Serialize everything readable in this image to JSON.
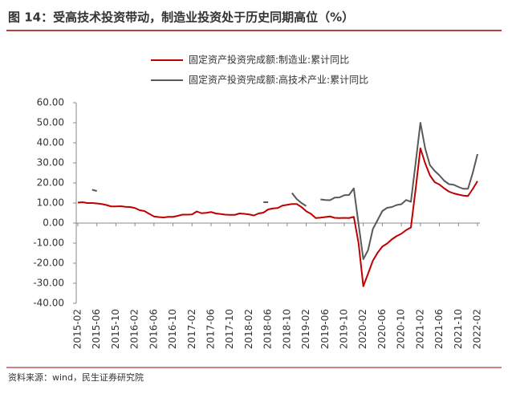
{
  "chart_data": {
    "type": "line",
    "title": "图 14：受高技术投资带动，制造业投资处于历史同期高位（%）",
    "source": "资料来源：wind，民生证券研究院",
    "categories": [
      "2015-02",
      null,
      null,
      null,
      "2015-06",
      null,
      null,
      null,
      "2015-10",
      null,
      null,
      null,
      "2016-02",
      null,
      null,
      null,
      "2016-06",
      null,
      null,
      null,
      "2016-10",
      null,
      null,
      null,
      "2017-02",
      null,
      null,
      null,
      "2017-06",
      null,
      null,
      null,
      "2017-10",
      null,
      null,
      null,
      "2018-02",
      null,
      null,
      null,
      "2018-06",
      null,
      null,
      null,
      "2018-10",
      null,
      null,
      null,
      "2019-02",
      null,
      null,
      null,
      "2019-06",
      null,
      null,
      null,
      "2019-10",
      null,
      null,
      null,
      "2020-02",
      null,
      null,
      null,
      "2020-06",
      null,
      null,
      null,
      "2020-10",
      null,
      null,
      null,
      "2021-02",
      null,
      null,
      null,
      "2021-06",
      null,
      null,
      null,
      "2021-10",
      null,
      null,
      null,
      "2022-02"
    ],
    "series": [
      {
        "name": "固定资产投资完成额:制造业:累计同比",
        "color": "#c00000",
        "values": [
          10.2,
          10.4,
          10.0,
          10.0,
          9.8,
          9.5,
          9.0,
          8.3,
          8.3,
          8.4,
          8.1,
          8.0,
          7.5,
          6.4,
          6.0,
          4.6,
          3.3,
          3.0,
          2.8,
          3.1,
          3.1,
          3.6,
          4.2,
          4.2,
          4.3,
          5.8,
          4.9,
          5.1,
          5.5,
          4.8,
          4.5,
          4.2,
          4.1,
          4.1,
          4.8,
          4.6,
          4.3,
          3.8,
          4.8,
          5.2,
          6.8,
          7.3,
          7.5,
          8.7,
          9.1,
          9.5,
          9.5,
          8.0,
          5.9,
          4.6,
          2.5,
          2.7,
          3.0,
          3.3,
          2.6,
          2.5,
          2.6,
          2.5,
          3.1,
          -10,
          -31.5,
          -25.2,
          -18.8,
          -14.8,
          -11.7,
          -10.2,
          -8.1,
          -6.5,
          -5.3,
          -3.5,
          -2.2,
          17,
          37.3,
          29.8,
          23.8,
          20.4,
          19.2,
          17.3,
          15.7,
          14.8,
          14.2,
          13.7,
          13.5,
          17,
          20.9
        ]
      },
      {
        "name": "固定资产投资完成额:高技术产业:累计同比",
        "color": "#595959",
        "values": [
          null,
          null,
          null,
          16.6,
          16.0,
          null,
          null,
          null,
          null,
          null,
          null,
          null,
          null,
          null,
          null,
          null,
          null,
          null,
          null,
          null,
          null,
          null,
          null,
          null,
          null,
          null,
          null,
          null,
          null,
          null,
          null,
          null,
          null,
          null,
          null,
          null,
          null,
          null,
          null,
          10.4,
          10.4,
          null,
          null,
          null,
          null,
          15.0,
          12.0,
          10.0,
          8.5,
          null,
          null,
          11.8,
          11.5,
          11.4,
          12.7,
          12.8,
          13.9,
          14.0,
          17.3,
          -0.5,
          -18.0,
          -13.5,
          -3.0,
          1.5,
          6.0,
          7.6,
          8.0,
          9.0,
          9.4,
          11.5,
          10.6,
          30,
          50.0,
          37.2,
          28.9,
          26.0,
          23.8,
          21.1,
          19.4,
          19.1,
          18.0,
          17.1,
          17.1,
          25,
          34.4
        ]
      }
    ],
    "ylim": [
      -40,
      60
    ],
    "yticks": [
      {
        "value": -40,
        "label": "-40.00"
      },
      {
        "value": -30,
        "label": "-30.00"
      },
      {
        "value": -20,
        "label": "-20.00"
      },
      {
        "value": -10,
        "label": "-10.00"
      },
      {
        "value": 0,
        "label": "0.00"
      },
      {
        "value": 10,
        "label": "10.00"
      },
      {
        "value": 20,
        "label": "20.00"
      },
      {
        "value": 30,
        "label": "30.00"
      },
      {
        "value": 40,
        "label": "40.00"
      },
      {
        "value": 50,
        "label": "50.00"
      },
      {
        "value": 60,
        "label": "60.00"
      }
    ],
    "grid": false
  }
}
